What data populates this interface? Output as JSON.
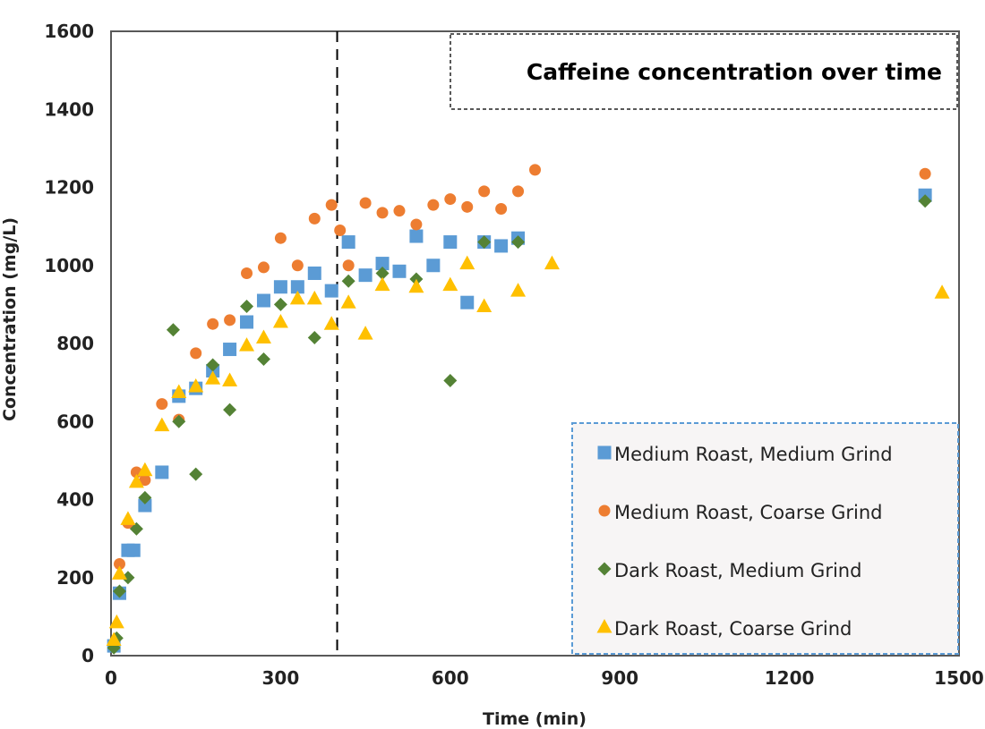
{
  "chart_data": {
    "type": "scatter",
    "title": "Caffeine concentration over time",
    "xlabel": "Time (min)",
    "ylabel": "Concentration (mg/L)",
    "xlim": [
      0,
      1500
    ],
    "ylim": [
      0,
      1600
    ],
    "x_ticks": [
      "0",
      "300",
      "600",
      "900",
      "1200",
      "1500"
    ],
    "y_ticks": [
      "0",
      "200",
      "400",
      "600",
      "800",
      "1000",
      "1200",
      "1400",
      "1600"
    ],
    "x_tick_values": [
      0,
      300,
      600,
      900,
      1200,
      1500
    ],
    "y_tick_values": [
      0,
      200,
      400,
      600,
      800,
      1000,
      1200,
      1400,
      1600
    ],
    "grid": false,
    "legend_position": "bottom-right",
    "reference_line": {
      "axis": "x",
      "value": 400,
      "style": "dashed"
    },
    "series": [
      {
        "name": "Medium Roast, Medium Grind",
        "marker": "square",
        "color": "#5b9bd5",
        "x": [
          5,
          15,
          30,
          40,
          60,
          90,
          120,
          150,
          180,
          210,
          240,
          270,
          300,
          330,
          360,
          390,
          420,
          450,
          480,
          510,
          540,
          570,
          600,
          630,
          660,
          690,
          720,
          1440
        ],
        "y": [
          25,
          160,
          270,
          270,
          385,
          470,
          665,
          685,
          730,
          785,
          855,
          910,
          945,
          945,
          980,
          935,
          1060,
          975,
          1005,
          985,
          1075,
          1000,
          1060,
          905,
          1060,
          1050,
          1070,
          1180
        ]
      },
      {
        "name": "Medium Roast, Coarse Grind",
        "marker": "circle",
        "color": "#ed7d31",
        "x": [
          15,
          30,
          45,
          60,
          90,
          120,
          150,
          180,
          210,
          240,
          270,
          300,
          330,
          360,
          390,
          405,
          420,
          450,
          480,
          510,
          540,
          570,
          600,
          630,
          660,
          690,
          720,
          750,
          1440
        ],
        "y": [
          235,
          340,
          470,
          450,
          645,
          605,
          775,
          850,
          860,
          980,
          995,
          1070,
          1000,
          1120,
          1155,
          1090,
          1000,
          1160,
          1135,
          1140,
          1105,
          1155,
          1170,
          1150,
          1190,
          1145,
          1190,
          1245,
          1235
        ]
      },
      {
        "name": "Dark Roast, Medium Grind",
        "marker": "diamond",
        "color": "#548235",
        "x": [
          5,
          10,
          15,
          30,
          45,
          60,
          110,
          120,
          150,
          180,
          210,
          240,
          270,
          300,
          360,
          420,
          480,
          540,
          600,
          660,
          720,
          1440
        ],
        "y": [
          20,
          45,
          165,
          200,
          325,
          405,
          835,
          600,
          465,
          745,
          630,
          895,
          760,
          900,
          815,
          960,
          980,
          965,
          705,
          1060,
          1060,
          1165
        ]
      },
      {
        "name": "Dark Roast, Coarse Grind",
        "marker": "triangle",
        "color": "#ffc000",
        "x": [
          5,
          10,
          15,
          30,
          45,
          60,
          90,
          120,
          150,
          180,
          210,
          240,
          270,
          300,
          330,
          360,
          390,
          420,
          450,
          480,
          540,
          600,
          630,
          660,
          720,
          780,
          1470
        ],
        "y": [
          40,
          85,
          210,
          350,
          445,
          475,
          590,
          675,
          690,
          710,
          705,
          795,
          815,
          855,
          915,
          915,
          850,
          905,
          825,
          950,
          945,
          950,
          1005,
          895,
          935,
          1005,
          930
        ]
      }
    ]
  },
  "colors": {
    "plot_border": "#595959",
    "title_box_border": "#595959",
    "legend_box_border": "#5b9bd5",
    "legend_background": "#f7f5f5",
    "reference_line": "#000000"
  }
}
